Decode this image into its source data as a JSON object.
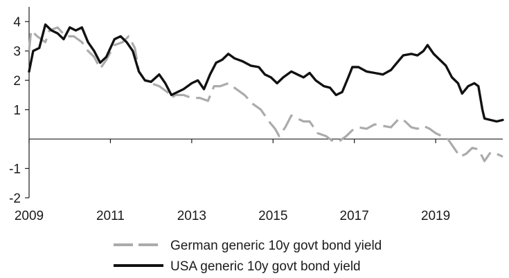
{
  "chart_data": {
    "type": "line",
    "title": "",
    "xlabel": "",
    "ylabel": "",
    "xlim": [
      2009.0,
      2020.65
    ],
    "ylim": [
      -2,
      4.5
    ],
    "x_ticks": [
      2009,
      2011,
      2013,
      2015,
      2017,
      2019
    ],
    "x_tick_labels": [
      "2009",
      "2011",
      "2013",
      "2015",
      "2017",
      "2019"
    ],
    "y_ticks": [
      4,
      3,
      2,
      1,
      -1,
      -2
    ],
    "y_tick_labels": [
      "4",
      "3",
      "2",
      "1",
      "-1",
      "-2"
    ],
    "zero_line": true,
    "grid": false,
    "legend_position": "bottom",
    "series": [
      {
        "name": "German generic 10y govt bond yield",
        "color": "#ababab",
        "style": "dashed",
        "points": [
          [
            2009.0,
            3.0
          ],
          [
            2009.05,
            3.7
          ],
          [
            2009.2,
            3.5
          ],
          [
            2009.4,
            3.3
          ],
          [
            2009.5,
            3.7
          ],
          [
            2009.7,
            3.8
          ],
          [
            2009.9,
            3.5
          ],
          [
            2010.1,
            3.5
          ],
          [
            2010.3,
            3.3
          ],
          [
            2010.45,
            3.0
          ],
          [
            2010.6,
            2.8
          ],
          [
            2010.75,
            2.4
          ],
          [
            2010.9,
            2.7
          ],
          [
            2011.1,
            3.2
          ],
          [
            2011.3,
            3.3
          ],
          [
            2011.45,
            3.5
          ],
          [
            2011.6,
            3.1
          ],
          [
            2011.7,
            2.3
          ],
          [
            2011.85,
            2.0
          ],
          [
            2012.0,
            1.9
          ],
          [
            2012.2,
            1.8
          ],
          [
            2012.4,
            1.6
          ],
          [
            2012.5,
            1.4
          ],
          [
            2012.6,
            1.5
          ],
          [
            2012.8,
            1.5
          ],
          [
            2013.0,
            1.4
          ],
          [
            2013.2,
            1.4
          ],
          [
            2013.4,
            1.3
          ],
          [
            2013.55,
            1.8
          ],
          [
            2013.7,
            1.8
          ],
          [
            2013.9,
            1.9
          ],
          [
            2014.1,
            1.7
          ],
          [
            2014.3,
            1.5
          ],
          [
            2014.5,
            1.2
          ],
          [
            2014.7,
            1.0
          ],
          [
            2014.9,
            0.6
          ],
          [
            2015.05,
            0.35
          ],
          [
            2015.15,
            0.1
          ],
          [
            2015.3,
            0.4
          ],
          [
            2015.45,
            0.8
          ],
          [
            2015.6,
            0.7
          ],
          [
            2015.75,
            0.6
          ],
          [
            2015.9,
            0.6
          ],
          [
            2016.1,
            0.2
          ],
          [
            2016.3,
            0.1
          ],
          [
            2016.5,
            -0.1
          ],
          [
            2016.65,
            -0.05
          ],
          [
            2016.8,
            0.1
          ],
          [
            2016.95,
            0.3
          ],
          [
            2017.1,
            0.4
          ],
          [
            2017.3,
            0.35
          ],
          [
            2017.5,
            0.5
          ],
          [
            2017.7,
            0.45
          ],
          [
            2017.9,
            0.4
          ],
          [
            2018.1,
            0.7
          ],
          [
            2018.25,
            0.6
          ],
          [
            2018.4,
            0.4
          ],
          [
            2018.55,
            0.35
          ],
          [
            2018.7,
            0.45
          ],
          [
            2018.85,
            0.35
          ],
          [
            2019.0,
            0.2
          ],
          [
            2019.15,
            0.1
          ],
          [
            2019.3,
            0.0
          ],
          [
            2019.45,
            -0.3
          ],
          [
            2019.6,
            -0.6
          ],
          [
            2019.75,
            -0.5
          ],
          [
            2019.9,
            -0.3
          ],
          [
            2020.05,
            -0.35
          ],
          [
            2020.2,
            -0.75
          ],
          [
            2020.35,
            -0.45
          ],
          [
            2020.5,
            -0.5
          ],
          [
            2020.65,
            -0.6
          ]
        ]
      },
      {
        "name": "USA generic 10y govt bond yield",
        "color": "#111111",
        "style": "solid",
        "points": [
          [
            2009.0,
            2.3
          ],
          [
            2009.1,
            3.0
          ],
          [
            2009.25,
            3.1
          ],
          [
            2009.4,
            3.9
          ],
          [
            2009.55,
            3.7
          ],
          [
            2009.7,
            3.6
          ],
          [
            2009.85,
            3.4
          ],
          [
            2010.0,
            3.8
          ],
          [
            2010.15,
            3.7
          ],
          [
            2010.3,
            3.8
          ],
          [
            2010.45,
            3.3
          ],
          [
            2010.6,
            3.0
          ],
          [
            2010.75,
            2.6
          ],
          [
            2010.9,
            2.8
          ],
          [
            2011.1,
            3.4
          ],
          [
            2011.25,
            3.5
          ],
          [
            2011.4,
            3.3
          ],
          [
            2011.55,
            3.0
          ],
          [
            2011.7,
            2.3
          ],
          [
            2011.85,
            2.0
          ],
          [
            2012.0,
            1.95
          ],
          [
            2012.2,
            2.2
          ],
          [
            2012.35,
            1.9
          ],
          [
            2012.5,
            1.5
          ],
          [
            2012.65,
            1.6
          ],
          [
            2012.8,
            1.7
          ],
          [
            2013.0,
            1.9
          ],
          [
            2013.15,
            2.0
          ],
          [
            2013.3,
            1.7
          ],
          [
            2013.45,
            2.2
          ],
          [
            2013.6,
            2.6
          ],
          [
            2013.75,
            2.7
          ],
          [
            2013.9,
            2.9
          ],
          [
            2014.05,
            2.75
          ],
          [
            2014.25,
            2.65
          ],
          [
            2014.45,
            2.5
          ],
          [
            2014.65,
            2.45
          ],
          [
            2014.8,
            2.2
          ],
          [
            2014.95,
            2.1
          ],
          [
            2015.1,
            1.9
          ],
          [
            2015.25,
            2.1
          ],
          [
            2015.45,
            2.3
          ],
          [
            2015.6,
            2.2
          ],
          [
            2015.75,
            2.1
          ],
          [
            2015.9,
            2.25
          ],
          [
            2016.05,
            2.0
          ],
          [
            2016.25,
            1.8
          ],
          [
            2016.4,
            1.75
          ],
          [
            2016.55,
            1.5
          ],
          [
            2016.7,
            1.6
          ],
          [
            2016.85,
            2.1
          ],
          [
            2016.95,
            2.45
          ],
          [
            2017.1,
            2.45
          ],
          [
            2017.3,
            2.3
          ],
          [
            2017.5,
            2.25
          ],
          [
            2017.7,
            2.2
          ],
          [
            2017.9,
            2.35
          ],
          [
            2018.05,
            2.6
          ],
          [
            2018.2,
            2.85
          ],
          [
            2018.4,
            2.9
          ],
          [
            2018.55,
            2.85
          ],
          [
            2018.7,
            3.0
          ],
          [
            2018.8,
            3.2
          ],
          [
            2018.95,
            2.9
          ],
          [
            2019.1,
            2.7
          ],
          [
            2019.25,
            2.5
          ],
          [
            2019.4,
            2.1
          ],
          [
            2019.55,
            1.9
          ],
          [
            2019.65,
            1.55
          ],
          [
            2019.8,
            1.8
          ],
          [
            2019.95,
            1.9
          ],
          [
            2020.05,
            1.8
          ],
          [
            2020.15,
            1.0
          ],
          [
            2020.2,
            0.7
          ],
          [
            2020.35,
            0.65
          ],
          [
            2020.5,
            0.6
          ],
          [
            2020.65,
            0.65
          ]
        ]
      }
    ]
  }
}
